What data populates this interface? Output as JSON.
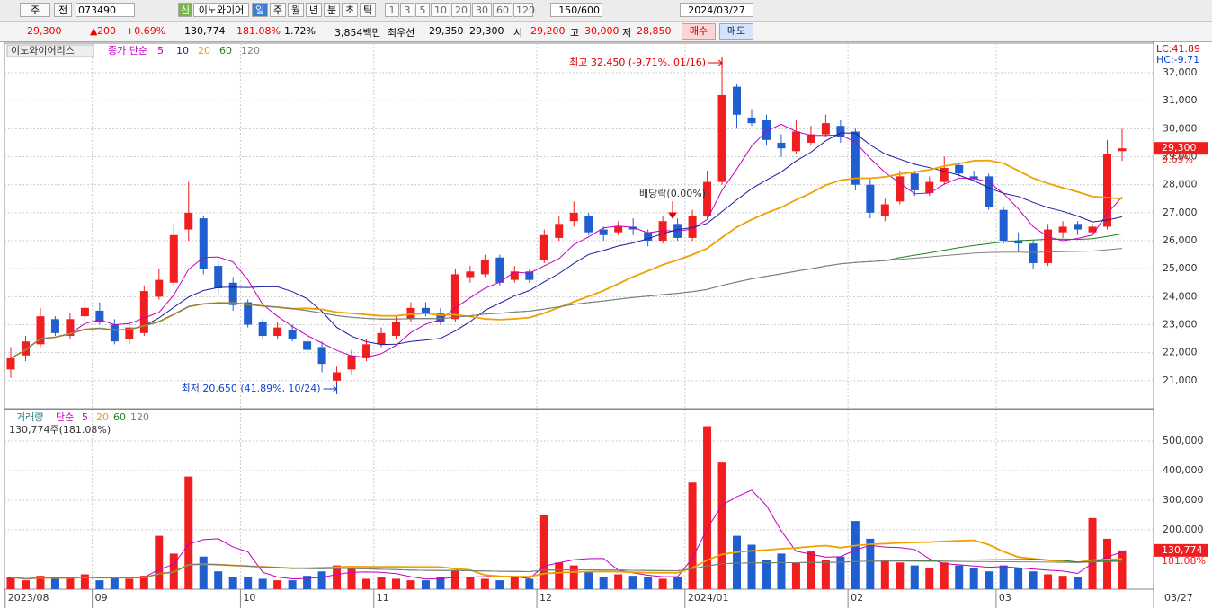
{
  "toolbar": {
    "market": "주",
    "mode": "전",
    "code": "073490",
    "name_tag": "신",
    "name": "이노와이어",
    "periods": [
      "일",
      "주",
      "월",
      "년",
      "분",
      "초",
      "틱"
    ],
    "intervals": [
      1,
      3,
      5,
      10,
      20,
      30,
      60,
      120
    ],
    "count": "150/600",
    "date": "2024/03/27"
  },
  "quote": {
    "price": "29,300",
    "arrow": "▲",
    "change": "200",
    "change_pct": "+0.69%",
    "volume": "130,774",
    "volume_ratio": "181.08%",
    "turnover": "1.72%",
    "amount": "3,854백만",
    "best_label": "최우선",
    "ask": "29,350",
    "bid": "29,300",
    "open_label": "시",
    "open": "29,200",
    "high_label": "고",
    "high": "30,000",
    "low_label": "저",
    "low": "28,850",
    "buy": "매수",
    "sell": "매도"
  },
  "chart_data": [
    {
      "type": "candlestick",
      "title": "이노와이어리스",
      "ma_label": "종가 단순",
      "lc": "LC:41.89",
      "hc": "HC:-9.71",
      "categories": [
        "2023/08",
        null,
        null,
        null,
        null,
        null,
        "09",
        null,
        null,
        null,
        null,
        null,
        null,
        null,
        null,
        null,
        "10",
        null,
        null,
        null,
        null,
        null,
        null,
        null,
        null,
        "11",
        null,
        null,
        null,
        null,
        null,
        null,
        null,
        null,
        null,
        null,
        "12",
        null,
        null,
        null,
        null,
        null,
        null,
        null,
        null,
        null,
        "2024/01",
        null,
        null,
        null,
        null,
        null,
        null,
        null,
        null,
        null,
        null,
        "02",
        null,
        null,
        null,
        null,
        null,
        null,
        null,
        null,
        null,
        "03",
        null,
        null,
        null,
        null,
        null,
        null,
        null,
        null
      ],
      "open": [
        21400,
        21900,
        22300,
        23200,
        22600,
        23300,
        23500,
        23000,
        22500,
        22700,
        24000,
        24500,
        26400,
        26800,
        25100,
        24500,
        23800,
        23100,
        22600,
        22800,
        22400,
        22200,
        21000,
        21400,
        21800,
        22300,
        22600,
        23200,
        23600,
        23400,
        23200,
        24700,
        24800,
        25400,
        24600,
        24900,
        25300,
        26100,
        26700,
        26900,
        26400,
        26300,
        26500,
        26300,
        26000,
        26600,
        26100,
        26900,
        28100,
        31500,
        30400,
        30300,
        29500,
        29200,
        29500,
        29800,
        30100,
        29900,
        28000,
        26900,
        27400,
        28400,
        27700,
        28100,
        28700,
        28300,
        28300,
        27100,
        26000,
        25900,
        25200,
        26300,
        26600,
        26300,
        26500,
        29200
      ],
      "high": [
        22200,
        22600,
        23600,
        23300,
        23400,
        23900,
        23800,
        23200,
        23100,
        24400,
        25000,
        26600,
        28100,
        26900,
        25300,
        24700,
        23900,
        23200,
        23100,
        23000,
        22600,
        22400,
        21500,
        22100,
        22500,
        22900,
        23300,
        23800,
        23800,
        23600,
        25000,
        25100,
        25500,
        25500,
        25100,
        25000,
        26400,
        26900,
        27400,
        27000,
        26500,
        26700,
        26800,
        26400,
        26900,
        26800,
        27100,
        28500,
        32450,
        31600,
        30700,
        30500,
        29800,
        30300,
        30100,
        30500,
        30300,
        30000,
        28200,
        27500,
        28500,
        28500,
        28300,
        29000,
        28800,
        28500,
        28400,
        27200,
        26300,
        26000,
        26600,
        26700,
        26700,
        26600,
        29600,
        30000
      ],
      "low": [
        21100,
        21700,
        22200,
        22600,
        22500,
        23100,
        23000,
        22300,
        22300,
        22600,
        23900,
        24400,
        26000,
        24800,
        24100,
        23500,
        22900,
        22500,
        22500,
        22400,
        22000,
        21300,
        20650,
        21200,
        21700,
        22200,
        22500,
        23100,
        23300,
        23000,
        23100,
        24500,
        24700,
        24400,
        24500,
        24500,
        25200,
        26000,
        26500,
        26200,
        26000,
        26200,
        26200,
        25800,
        25900,
        26000,
        26000,
        26800,
        28000,
        30000,
        30100,
        29400,
        29000,
        29100,
        29400,
        29700,
        29500,
        27800,
        26800,
        26700,
        27300,
        27600,
        27600,
        28000,
        28300,
        28100,
        27100,
        25900,
        25600,
        25000,
        25100,
        26100,
        26200,
        26200,
        26400,
        28850
      ],
      "close": [
        21800,
        22400,
        23300,
        22700,
        23200,
        23600,
        23100,
        22400,
        22900,
        24200,
        24600,
        26200,
        27000,
        25000,
        24300,
        23700,
        23000,
        22600,
        22900,
        22500,
        22100,
        21600,
        21300,
        21900,
        22300,
        22700,
        23100,
        23600,
        23400,
        23100,
        24800,
        24900,
        25300,
        24500,
        24900,
        24600,
        26200,
        26600,
        27000,
        26300,
        26200,
        26500,
        26400,
        26000,
        26700,
        26100,
        26900,
        28100,
        31200,
        30500,
        30200,
        29600,
        29300,
        29900,
        29800,
        30200,
        29700,
        28000,
        27000,
        27300,
        28300,
        27800,
        28100,
        28600,
        28400,
        28200,
        27200,
        26000,
        25900,
        25200,
        26400,
        26500,
        26400,
        26500,
        29100,
        29300
      ],
      "up_color": "#f01e1e",
      "down_color": "#1f5fd0",
      "ylim": [
        20000,
        33060
      ],
      "yticks": [
        {
          "value": 21000,
          "label": "21,000"
        },
        {
          "value": 22000,
          "label": "22,000"
        },
        {
          "value": 23000,
          "label": "23,000"
        },
        {
          "value": 24000,
          "label": "24,000"
        },
        {
          "value": 25000,
          "label": "25,000"
        },
        {
          "value": 26000,
          "label": "26,000"
        },
        {
          "value": 27000,
          "label": "27,000"
        },
        {
          "value": 28000,
          "label": "28,000"
        },
        {
          "value": 29000,
          "label": "29,000"
        },
        {
          "value": 30000,
          "label": "30,000"
        },
        {
          "value": 31000,
          "label": "31,000"
        },
        {
          "value": 32000,
          "label": "32,000"
        }
      ],
      "grid": true,
      "moving_averages": [
        {
          "period": 5,
          "color": "#c000c0"
        },
        {
          "period": 10,
          "color": "#1a1aa0"
        },
        {
          "period": 20,
          "color": "#f0a000"
        },
        {
          "period": 60,
          "color": "#208020"
        },
        {
          "period": 120,
          "color": "#808080"
        }
      ],
      "high_annotation": "최고 32,450 (-9.71%, 01/16)",
      "low_annotation": "최저 20,650 (41.89%, 10/24)",
      "dividend_annotation": "배당락(0.00%)",
      "last_price": {
        "value": 29300,
        "label": "29,300"
      },
      "last_change": "0.69%"
    },
    {
      "type": "bar",
      "title": "거래량",
      "ma_label": "단순",
      "summary": "130,774주(181.08%)",
      "values": [
        40000,
        30000,
        45000,
        35000,
        40000,
        50000,
        30000,
        40000,
        35000,
        45000,
        180000,
        120000,
        380000,
        110000,
        60000,
        40000,
        40000,
        35000,
        30000,
        30000,
        45000,
        60000,
        80000,
        70000,
        35000,
        40000,
        35000,
        30000,
        30000,
        40000,
        65000,
        40000,
        35000,
        30000,
        40000,
        35000,
        250000,
        90000,
        80000,
        60000,
        40000,
        50000,
        45000,
        40000,
        35000,
        40000,
        360000,
        550000,
        430000,
        180000,
        150000,
        100000,
        120000,
        90000,
        130000,
        100000,
        110000,
        230000,
        170000,
        100000,
        90000,
        80000,
        70000,
        90000,
        80000,
        70000,
        60000,
        80000,
        70000,
        60000,
        50000,
        45000,
        40000,
        240000,
        170000,
        130774
      ],
      "ylim": [
        0,
        588000
      ],
      "yticks": [
        {
          "value": 200000,
          "label": "200,000"
        },
        {
          "value": 300000,
          "label": "300,000"
        },
        {
          "value": 400000,
          "label": "400,000"
        },
        {
          "value": 500000,
          "label": "500,000"
        }
      ],
      "grid": true,
      "moving_averages": [
        {
          "period": 5,
          "color": "#c000c0"
        },
        {
          "period": 20,
          "color": "#f0a000"
        },
        {
          "period": 60,
          "color": "#208020"
        },
        {
          "period": 120,
          "color": "#808080"
        }
      ],
      "last_volume": {
        "value": 130774,
        "label": "130,774"
      },
      "last_ratio": "181.08%",
      "x_end_label": "03/27"
    }
  ]
}
